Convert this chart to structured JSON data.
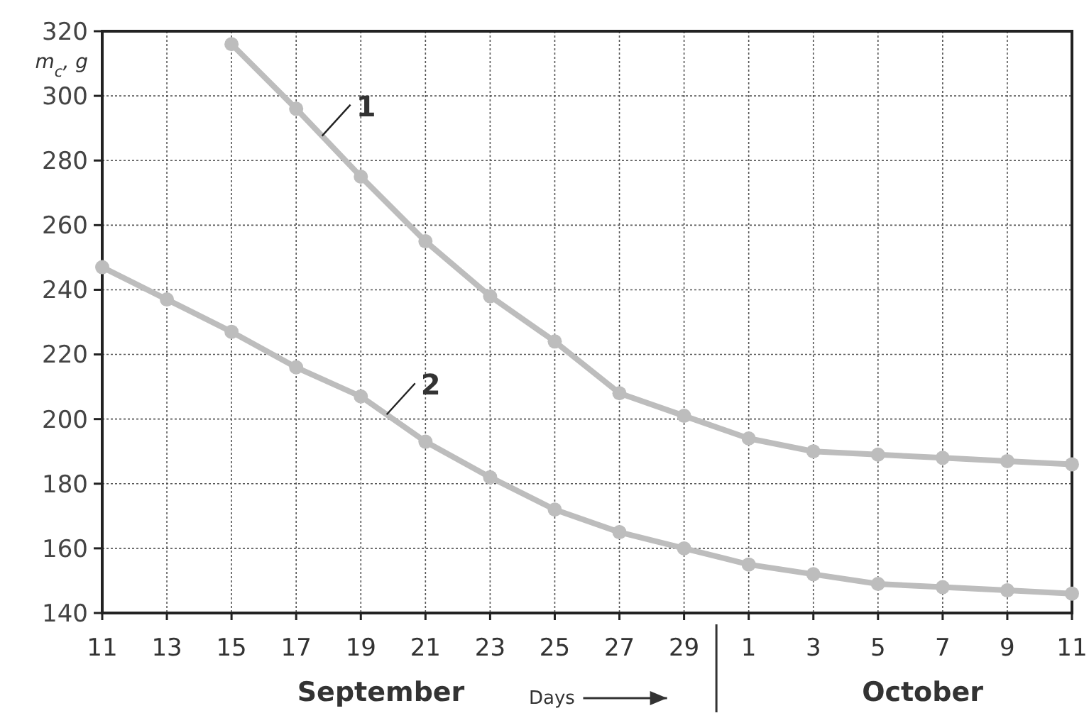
{
  "chart_data": {
    "type": "line",
    "ylabel": "m$_{c}$, g",
    "xlabel": "Days",
    "annotations": [
      "September",
      "October"
    ],
    "x": [
      "--09-11",
      "--09-13",
      "--09-15",
      "--09-17",
      "--09-19",
      "--09-21",
      "--09-23",
      "--09-25",
      "--09-27",
      "--09-29",
      "--10-01",
      "--10-03",
      "--10-05",
      "--10-07",
      "--10-09",
      "--10-11"
    ],
    "series": [
      {
        "name": "1",
        "color": "#bdbdbd",
        "values": [
          null,
          null,
          316,
          296,
          275,
          255,
          238,
          224,
          208,
          201,
          194,
          190,
          189,
          188,
          187,
          186
        ]
      },
      {
        "name": "2",
        "color": "#bdbdbd",
        "values": [
          247,
          237,
          227,
          216,
          207,
          193,
          182,
          172,
          165,
          160,
          155,
          152,
          149,
          148,
          147,
          146
        ]
      }
    ],
    "xlim": [
      "--09-11",
      "--10-11"
    ],
    "xticks": [
      {
        "value": "--09-11",
        "label": "11"
      },
      {
        "value": "--09-13",
        "label": "13"
      },
      {
        "value": "--09-15",
        "label": "15"
      },
      {
        "value": "--09-17",
        "label": "17"
      },
      {
        "value": "--09-19",
        "label": "19"
      },
      {
        "value": "--09-21",
        "label": "21"
      },
      {
        "value": "--09-23",
        "label": "23"
      },
      {
        "value": "--09-25",
        "label": "25"
      },
      {
        "value": "--09-27",
        "label": "27"
      },
      {
        "value": "--09-29",
        "label": "29"
      },
      {
        "value": "--10-01",
        "label": "1"
      },
      {
        "value": "--10-03",
        "label": "3"
      },
      {
        "value": "--10-05",
        "label": "5"
      },
      {
        "value": "--10-07",
        "label": "7"
      },
      {
        "value": "--10-09",
        "label": "9"
      },
      {
        "value": "--10-11",
        "label": "11"
      }
    ],
    "ylim": [
      140,
      320
    ],
    "yticks": [
      140,
      160,
      180,
      200,
      220,
      240,
      260,
      280,
      300,
      320
    ],
    "grid": true,
    "marker": "circle",
    "line_style": "solid"
  }
}
